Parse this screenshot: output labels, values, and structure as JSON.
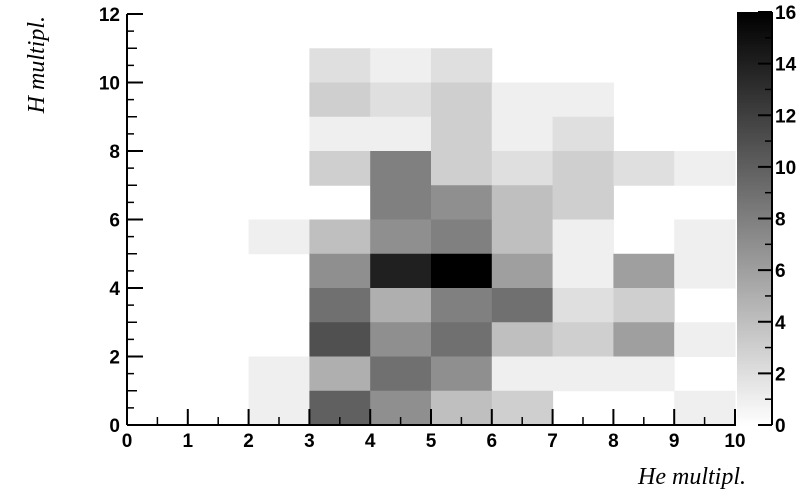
{
  "chart_data": {
    "type": "heatmap",
    "title": "",
    "xlabel": "He multipl.",
    "ylabel": "H multipl.",
    "xlim": [
      0,
      10
    ],
    "ylim": [
      0,
      12
    ],
    "x_ticks": [
      "0",
      "1",
      "2",
      "3",
      "4",
      "5",
      "6",
      "7",
      "8",
      "9",
      "10"
    ],
    "y_ticks": [
      "0",
      "2",
      "4",
      "6",
      "8",
      "10",
      "12"
    ],
    "colorbar": {
      "range": [
        0,
        16
      ],
      "ticks": [
        "0",
        "2",
        "4",
        "6",
        "8",
        "10",
        "12",
        "14",
        "16"
      ],
      "colormap": "grayscale (white = 0, black = max)"
    },
    "bin_width_x": 1,
    "bin_height_y": 1,
    "cells": [
      {
        "x": 3,
        "y": 10,
        "v": 2
      },
      {
        "x": 4,
        "y": 10,
        "v": 1
      },
      {
        "x": 5,
        "y": 10,
        "v": 2
      },
      {
        "x": 3,
        "y": 9,
        "v": 3
      },
      {
        "x": 4,
        "y": 9,
        "v": 2
      },
      {
        "x": 5,
        "y": 9,
        "v": 3
      },
      {
        "x": 6,
        "y": 9,
        "v": 1
      },
      {
        "x": 7,
        "y": 9,
        "v": 1
      },
      {
        "x": 3,
        "y": 8,
        "v": 1
      },
      {
        "x": 4,
        "y": 8,
        "v": 1
      },
      {
        "x": 5,
        "y": 8,
        "v": 3
      },
      {
        "x": 6,
        "y": 8,
        "v": 1
      },
      {
        "x": 7,
        "y": 8,
        "v": 2
      },
      {
        "x": 3,
        "y": 7,
        "v": 3
      },
      {
        "x": 4,
        "y": 7,
        "v": 8
      },
      {
        "x": 5,
        "y": 7,
        "v": 3
      },
      {
        "x": 6,
        "y": 7,
        "v": 2
      },
      {
        "x": 7,
        "y": 7,
        "v": 3
      },
      {
        "x": 8,
        "y": 7,
        "v": 2
      },
      {
        "x": 9,
        "y": 7,
        "v": 1
      },
      {
        "x": 4,
        "y": 6,
        "v": 8
      },
      {
        "x": 5,
        "y": 6,
        "v": 7
      },
      {
        "x": 6,
        "y": 6,
        "v": 4
      },
      {
        "x": 7,
        "y": 6,
        "v": 3
      },
      {
        "x": 2,
        "y": 5,
        "v": 1
      },
      {
        "x": 3,
        "y": 5,
        "v": 4
      },
      {
        "x": 4,
        "y": 5,
        "v": 7
      },
      {
        "x": 5,
        "y": 5,
        "v": 8
      },
      {
        "x": 6,
        "y": 5,
        "v": 4
      },
      {
        "x": 7,
        "y": 5,
        "v": 1
      },
      {
        "x": 9,
        "y": 5,
        "v": 1
      },
      {
        "x": 3,
        "y": 4,
        "v": 7
      },
      {
        "x": 4,
        "y": 4,
        "v": 14
      },
      {
        "x": 5,
        "y": 4,
        "v": 16
      },
      {
        "x": 6,
        "y": 4,
        "v": 6
      },
      {
        "x": 7,
        "y": 4,
        "v": 1
      },
      {
        "x": 8,
        "y": 4,
        "v": 6
      },
      {
        "x": 9,
        "y": 4,
        "v": 1
      },
      {
        "x": 3,
        "y": 3,
        "v": 9
      },
      {
        "x": 4,
        "y": 3,
        "v": 5
      },
      {
        "x": 5,
        "y": 3,
        "v": 8
      },
      {
        "x": 6,
        "y": 3,
        "v": 9
      },
      {
        "x": 7,
        "y": 3,
        "v": 2
      },
      {
        "x": 8,
        "y": 3,
        "v": 3
      },
      {
        "x": 3,
        "y": 2,
        "v": 11
      },
      {
        "x": 4,
        "y": 2,
        "v": 7
      },
      {
        "x": 5,
        "y": 2,
        "v": 9
      },
      {
        "x": 6,
        "y": 2,
        "v": 4
      },
      {
        "x": 7,
        "y": 2,
        "v": 3
      },
      {
        "x": 8,
        "y": 2,
        "v": 6
      },
      {
        "x": 9,
        "y": 2,
        "v": 1
      },
      {
        "x": 2,
        "y": 1,
        "v": 1
      },
      {
        "x": 3,
        "y": 1,
        "v": 5
      },
      {
        "x": 4,
        "y": 1,
        "v": 9
      },
      {
        "x": 5,
        "y": 1,
        "v": 7
      },
      {
        "x": 6,
        "y": 1,
        "v": 1
      },
      {
        "x": 7,
        "y": 1,
        "v": 1
      },
      {
        "x": 8,
        "y": 1,
        "v": 1
      },
      {
        "x": 2,
        "y": 0,
        "v": 1
      },
      {
        "x": 3,
        "y": 0,
        "v": 10
      },
      {
        "x": 4,
        "y": 0,
        "v": 7
      },
      {
        "x": 5,
        "y": 0,
        "v": 4
      },
      {
        "x": 6,
        "y": 0,
        "v": 3
      },
      {
        "x": 9,
        "y": 0,
        "v": 1
      }
    ]
  }
}
